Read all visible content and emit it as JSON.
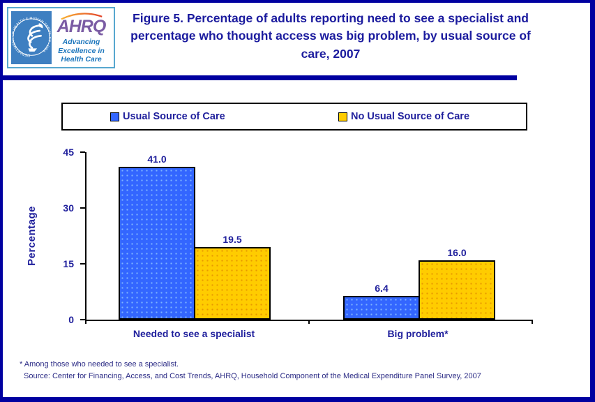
{
  "header": {
    "title": "Figure 5. Percentage of adults reporting need to see a specialist and percentage who thought access was big problem, by usual source of care, 2007",
    "logo": {
      "hhs_ring_text": "DEPARTMENT OF HEALTH & HUMAN SERVICES · USA",
      "ahrq_acronym": "AHRQ",
      "tagline_line1": "Advancing",
      "tagline_line2": "Excellence in",
      "tagline_line3": "Health Care"
    }
  },
  "legend": {
    "items": [
      {
        "label": "Usual Source of Care",
        "color": "#3366FF"
      },
      {
        "label": "No Usual Source of Care",
        "color": "#FFCC00"
      }
    ]
  },
  "chart_data": {
    "type": "bar",
    "title": "Figure 5. Percentage of adults reporting need to see a specialist and percentage who thought access was big problem, by usual source of care, 2007",
    "categories": [
      "Needed to see a specialist",
      "Big problem*"
    ],
    "series": [
      {
        "name": "Usual Source of Care",
        "color": "#3366FF",
        "values": [
          41.0,
          6.4
        ],
        "labels": [
          "41.0",
          "6.4"
        ]
      },
      {
        "name": "No Usual Source of Care",
        "color": "#FFCC00",
        "values": [
          19.5,
          16.0
        ],
        "labels": [
          "19.5",
          "16.0"
        ]
      }
    ],
    "xlabel": "",
    "ylabel": "Percentage",
    "ylim": [
      0,
      45
    ],
    "yticks": [
      0,
      15,
      30,
      45
    ],
    "grid": false,
    "legend_position": "top"
  },
  "footnotes": {
    "line1": "* Among those who needed to see a specialist.",
    "line2": "Source: Center for Financing, Access, and Cost Trends, AHRQ, Household Component of the Medical Expenditure Panel Survey, 2007"
  }
}
